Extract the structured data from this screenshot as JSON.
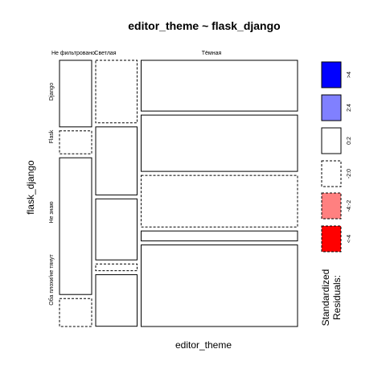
{
  "chart_data": {
    "type": "mosaic",
    "title": "editor_theme ~ flask_django",
    "xlabel": "editor_theme",
    "ylabel": "flask_django",
    "columns": [
      {
        "label": "Не фильтровано",
        "share": 0.14
      },
      {
        "label": "Светлая",
        "share": 0.18
      },
      {
        "label": "Тёмная",
        "share": 0.68
      }
    ],
    "rows": [
      "Django",
      "Flask",
      "Не знаю",
      "Оба плохи/не тянут"
    ],
    "cell_shares": [
      [
        0.262,
        0.09,
        0.538,
        0.11
      ],
      [
        0.25,
        0.272,
        0.244,
        0.027,
        0.206
      ],
      [
        0.203,
        0.225,
        0.206,
        0.04,
        0.326
      ]
    ],
    "cells": [
      {
        "column": "Не фильтровано",
        "row": "Django",
        "residual": "0:2"
      },
      {
        "column": "Не фильтровано",
        "row": "Flask",
        "residual": "-2:0"
      },
      {
        "column": "Не фильтровано",
        "row": "Не знаю",
        "residual": "0:2"
      },
      {
        "column": "Не фильтровано",
        "row": "Оба плохи/не тянут",
        "residual": "-2:0"
      },
      {
        "column": "Светлая",
        "row": "Django",
        "residual": "-2:0"
      },
      {
        "column": "Светлая",
        "row": "Flask",
        "residual": "0:2"
      },
      {
        "column": "Светлая",
        "row": "Не знаю",
        "residual": "0:2"
      },
      {
        "column": "Светлая",
        "row": "Не знаю (zero)",
        "residual": "-2:0"
      },
      {
        "column": "Светлая",
        "row": "Оба плохи/не тянут",
        "residual": "0:2"
      },
      {
        "column": "Тёмная",
        "row": "Django",
        "residual": "0:2"
      },
      {
        "column": "Тёмная",
        "row": "Flask",
        "residual": "0:2"
      },
      {
        "column": "Тёмная",
        "row": "Не знаю",
        "residual": "-2:0"
      },
      {
        "column": "Тёмная",
        "row": "Не знаю (2)",
        "residual": "0:2"
      },
      {
        "column": "Тёмная",
        "row": "Оба плохи/не тянут",
        "residual": "0:2"
      }
    ],
    "legend": {
      "title_lines": [
        "Standardized",
        "Residuals:"
      ],
      "position": "right",
      "items": [
        {
          "label": ">4",
          "color": "#0000ff",
          "dashed": false
        },
        {
          "label": "2:4",
          "color": "#8080ff",
          "dashed": false
        },
        {
          "label": "0:2",
          "color": "#ffffff",
          "dashed": false
        },
        {
          "label": "-2:0",
          "color": "#ffffff",
          "dashed": true
        },
        {
          "label": "-4:-2",
          "color": "#ff8080",
          "dashed": true
        },
        {
          "label": "<-4",
          "color": "#ff0000",
          "dashed": true
        }
      ]
    }
  }
}
